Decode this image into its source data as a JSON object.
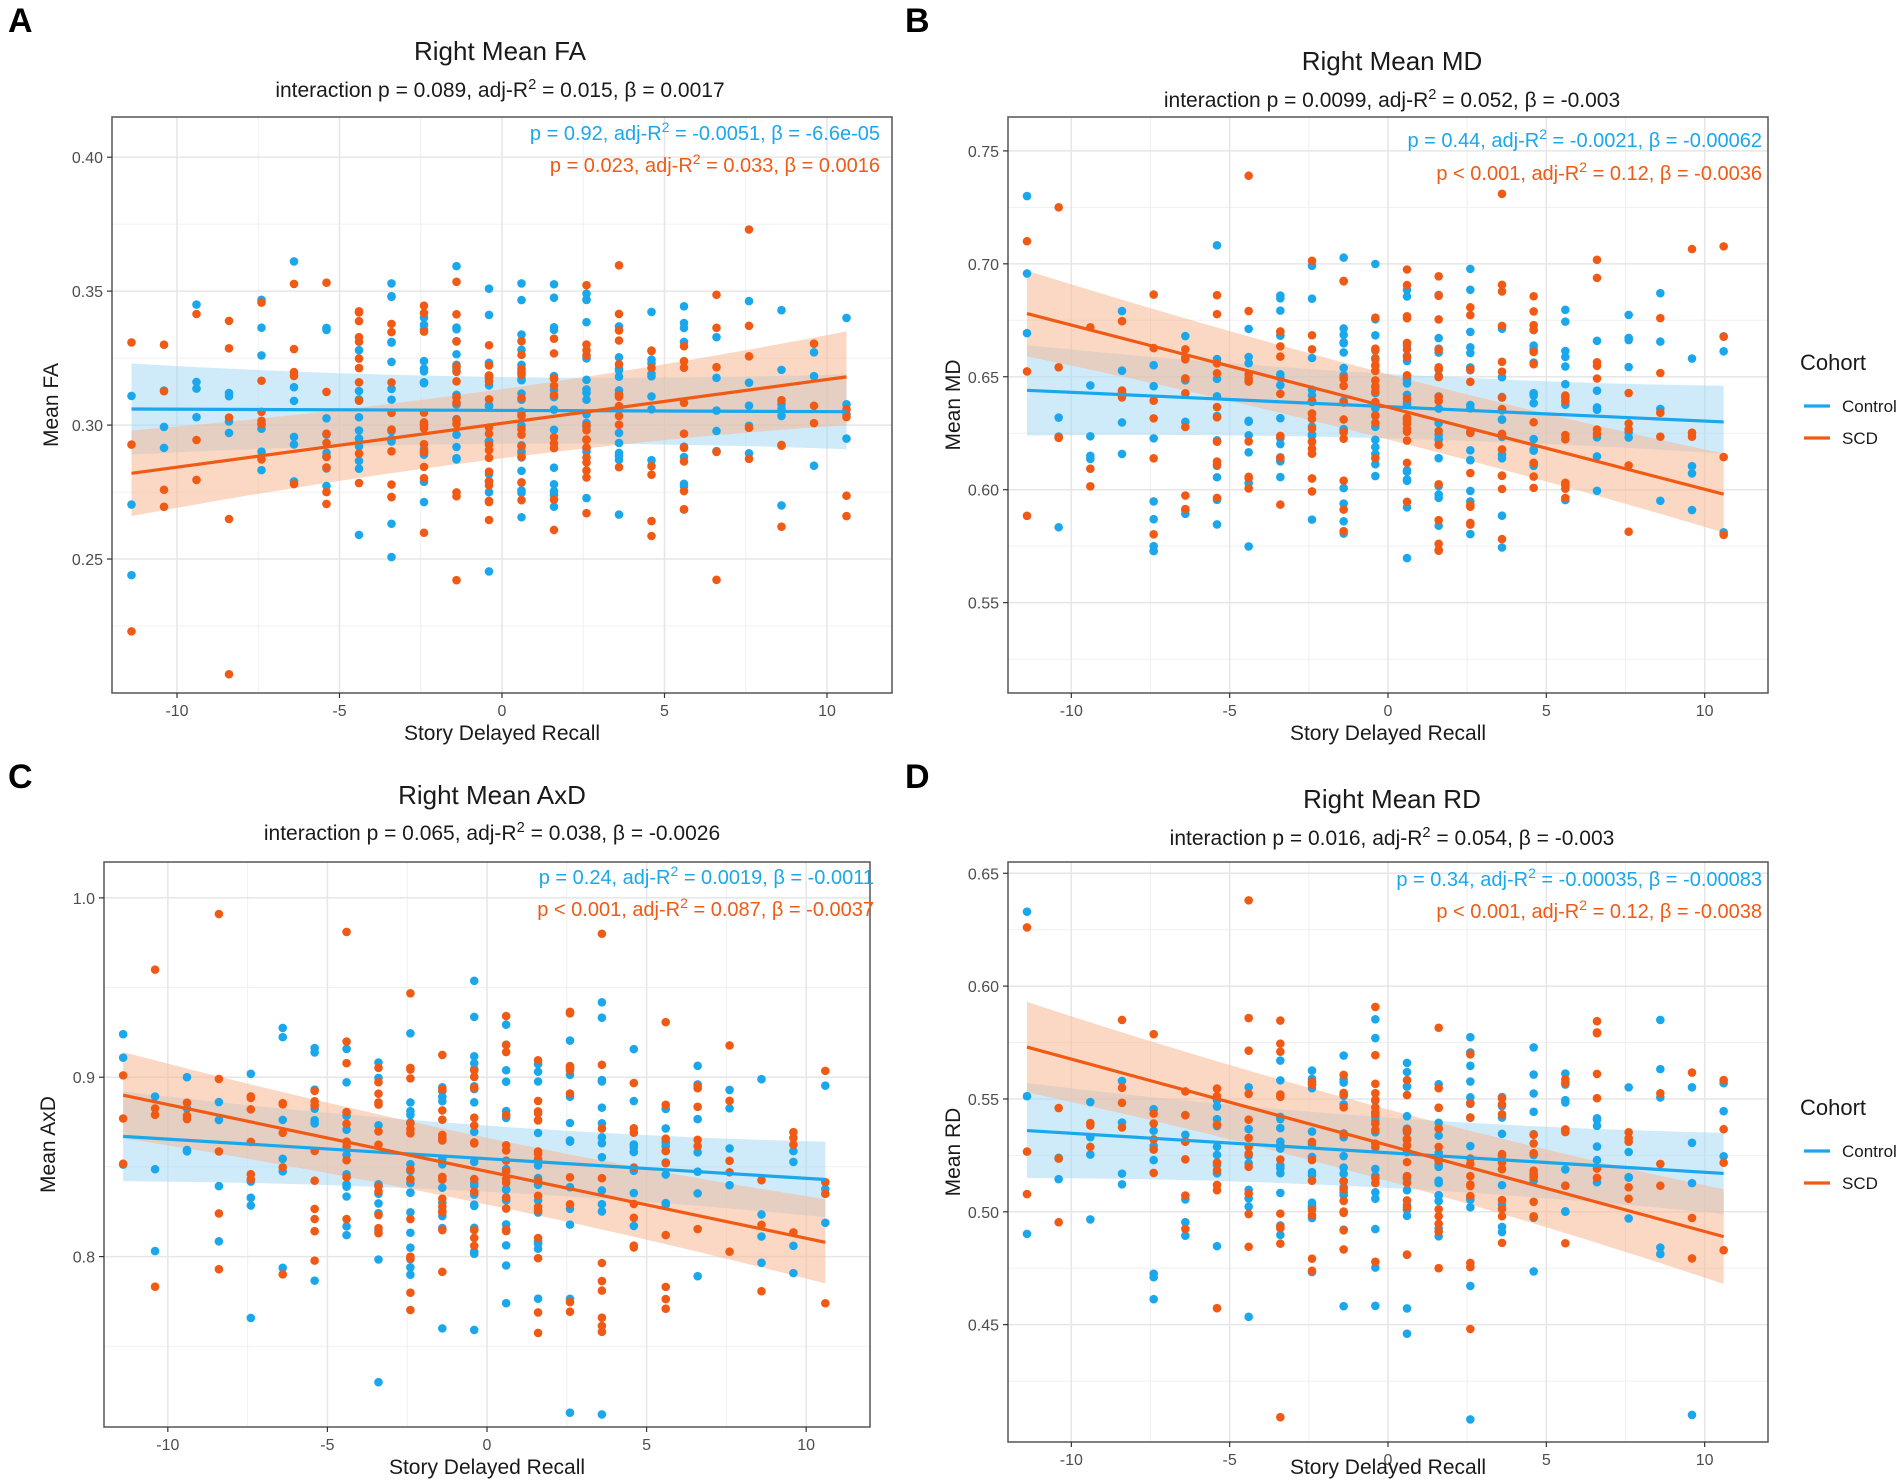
{
  "colors": {
    "control": "#1AA7EC",
    "scd": "#F05A14",
    "control_band": "#A8DAF5",
    "scd_band": "#F7B894",
    "grid": "#E6E6E6",
    "frame": "#555555"
  },
  "legend": {
    "title": "Cohort",
    "items": [
      "Control",
      "SCD"
    ]
  },
  "chart_data": [
    {
      "letter": "A",
      "type": "scatter",
      "title": "Right Mean FA",
      "subtitle": {
        "pre": "interaction p = 0.089, adj-R",
        "sup": "2",
        "post": " = 0.015, β = 0.0017"
      },
      "stats": [
        {
          "group": "Control",
          "pre": "p = 0.92, adj-R",
          "sup": "2",
          "post": " = -0.0051, β = -6.6e-05"
        },
        {
          "group": "SCD",
          "pre": "p = 0.023, adj-R",
          "sup": "2",
          "post": " = 0.033, β = 0.0016"
        }
      ],
      "xlabel": "Story Delayed Recall",
      "ylabel": "Mean FA",
      "xlim": [
        -12,
        12
      ],
      "ylim": [
        0.2,
        0.415
      ],
      "xticks": [
        -10,
        -5,
        0,
        5,
        10
      ],
      "xtick_labels": [
        "-10",
        "-5",
        "0",
        "5",
        "10"
      ],
      "yticks": [
        0.25,
        0.3,
        0.35,
        0.4
      ],
      "ytick_labels": [
        "0.25",
        "0.30",
        "0.35",
        "0.40"
      ],
      "control_fit": {
        "x": [
          -11.4,
          10.6
        ],
        "y": [
          0.306,
          0.305
        ],
        "band_lo_ends": [
          0.289,
          0.291
        ],
        "band_hi_ends": [
          0.323,
          0.319
        ]
      },
      "scd_fit": {
        "x": [
          -11.4,
          10.6
        ],
        "y": [
          0.282,
          0.318
        ],
        "band_lo_ends": [
          0.266,
          0.3
        ],
        "band_hi_ends": [
          0.298,
          0.335
        ]
      },
      "y_center": 0.305,
      "y_spread": 0.045,
      "control_points": [
        [
          -11.4,
          0.244
        ],
        [
          -7.4,
          0.326
        ],
        [
          8.6,
          0.27
        ],
        [
          10.6,
          0.304
        ]
      ],
      "scd_points": [
        [
          -11.4,
          0.223
        ],
        [
          -10.4,
          0.33
        ],
        [
          -8.4,
          0.207
        ],
        [
          7.6,
          0.373
        ],
        [
          10.6,
          0.303
        ]
      ]
    },
    {
      "letter": "B",
      "type": "scatter",
      "title": "Right Mean MD",
      "subtitle": {
        "pre": "interaction p = 0.0099, adj-R",
        "sup": "2",
        "post": " = 0.052, β = -0.003"
      },
      "stats": [
        {
          "group": "Control",
          "pre": "p = 0.44, adj-R",
          "sup": "2",
          "post": " = -0.0021, β = -0.00062"
        },
        {
          "group": "SCD",
          "pre": "p < 0.001, adj-R",
          "sup": "2",
          "post": " = 0.12, β = -0.0036"
        }
      ],
      "xlabel": "Story Delayed Recall",
      "ylabel": "Mean MD",
      "xlim": [
        -12,
        12
      ],
      "ylim": [
        0.51,
        0.765
      ],
      "xticks": [
        -10,
        -5,
        0,
        5,
        10
      ],
      "xtick_labels": [
        "-10",
        "-5",
        "0",
        "5",
        "10"
      ],
      "yticks": [
        0.55,
        0.6,
        0.65,
        0.7,
        0.75
      ],
      "ytick_labels": [
        "0.55",
        "0.60",
        "0.65",
        "0.70",
        "0.75"
      ],
      "control_fit": {
        "x": [
          -11.4,
          10.6
        ],
        "y": [
          0.644,
          0.63
        ],
        "band_lo_ends": [
          0.624,
          0.616
        ],
        "band_hi_ends": [
          0.664,
          0.646
        ]
      },
      "scd_fit": {
        "x": [
          -11.4,
          10.6
        ],
        "y": [
          0.678,
          0.598
        ],
        "band_lo_ends": [
          0.659,
          0.581
        ],
        "band_hi_ends": [
          0.697,
          0.616
        ]
      },
      "y_center": 0.637,
      "y_spread": 0.055,
      "control_points": [
        [
          -11.4,
          0.73
        ],
        [
          -7.4,
          0.575
        ],
        [
          8.6,
          0.687
        ],
        [
          9.6,
          0.591
        ]
      ],
      "scd_points": [
        [
          -11.4,
          0.71
        ],
        [
          -10.4,
          0.725
        ],
        [
          -4.4,
          0.739
        ],
        [
          3.6,
          0.731
        ],
        [
          10.6,
          0.58
        ]
      ]
    },
    {
      "letter": "C",
      "type": "scatter",
      "title": "Right Mean AxD",
      "subtitle": {
        "pre": "interaction p = 0.065, adj-R",
        "sup": "2",
        "post": " = 0.038, β = -0.0026"
      },
      "stats": [
        {
          "group": "Control",
          "pre": "p = 0.24, adj-R",
          "sup": "2",
          "post": " = 0.0019, β = -0.0011"
        },
        {
          "group": "SCD",
          "pre": "p < 0.001, adj-R",
          "sup": "2",
          "post": " = 0.087, β = -0.0037"
        }
      ],
      "xlabel": "Story Delayed Recall",
      "ylabel": "Mean AxD",
      "xlim": [
        -12,
        12
      ],
      "ylim": [
        0.705,
        1.02
      ],
      "xticks": [
        -10,
        -5,
        0,
        5,
        10
      ],
      "xtick_labels": [
        "-10",
        "-5",
        "0",
        "5",
        "10"
      ],
      "yticks": [
        0.8,
        0.9,
        1.0
      ],
      "ytick_labels": [
        "0.8",
        "0.9",
        "1.0"
      ],
      "control_fit": {
        "x": [
          -11.4,
          10.6
        ],
        "y": [
          0.867,
          0.843
        ],
        "band_lo_ends": [
          0.842,
          0.822
        ],
        "band_hi_ends": [
          0.892,
          0.864
        ]
      },
      "scd_fit": {
        "x": [
          -11.4,
          10.6
        ],
        "y": [
          0.89,
          0.808
        ],
        "band_lo_ends": [
          0.866,
          0.785
        ],
        "band_hi_ends": [
          0.914,
          0.832
        ]
      },
      "y_center": 0.853,
      "y_spread": 0.075,
      "control_points": [
        [
          -11.4,
          0.924
        ],
        [
          -3.4,
          0.73
        ],
        [
          2.6,
          0.713
        ],
        [
          3.6,
          0.712
        ],
        [
          9.6,
          0.806
        ]
      ],
      "scd_points": [
        [
          -11.4,
          0.877
        ],
        [
          -10.4,
          0.96
        ],
        [
          -8.4,
          0.991
        ],
        [
          -4.4,
          0.981
        ],
        [
          3.6,
          0.98
        ],
        [
          10.6,
          0.774
        ]
      ]
    },
    {
      "letter": "D",
      "type": "scatter",
      "title": "Right Mean RD",
      "subtitle": {
        "pre": "interaction p = 0.016, adj-R",
        "sup": "2",
        "post": " = 0.054, β = -0.003"
      },
      "stats": [
        {
          "group": "Control",
          "pre": "p = 0.34, adj-R",
          "sup": "2",
          "post": " = -0.00035, β = -0.00083"
        },
        {
          "group": "SCD",
          "pre": "p < 0.001, adj-R",
          "sup": "2",
          "post": " = 0.12, β = -0.0038"
        }
      ],
      "xlabel": "Story Delayed Recall",
      "ylabel": "Mean RD",
      "xlim": [
        -12,
        12
      ],
      "ylim": [
        0.398,
        0.655
      ],
      "xticks": [
        -10,
        -5,
        0,
        5,
        10
      ],
      "xtick_labels": [
        "-10",
        "-5",
        "0",
        "5",
        "10"
      ],
      "yticks": [
        0.45,
        0.5,
        0.55,
        0.6,
        0.65
      ],
      "ytick_labels": [
        "0.45",
        "0.50",
        "0.55",
        "0.60",
        "0.65"
      ],
      "control_fit": {
        "x": [
          -11.4,
          10.6
        ],
        "y": [
          0.536,
          0.517
        ],
        "band_lo_ends": [
          0.515,
          0.499
        ],
        "band_hi_ends": [
          0.557,
          0.535
        ]
      },
      "scd_fit": {
        "x": [
          -11.4,
          10.6
        ],
        "y": [
          0.573,
          0.489
        ],
        "band_lo_ends": [
          0.553,
          0.468
        ],
        "band_hi_ends": [
          0.593,
          0.51
        ]
      },
      "y_center": 0.525,
      "y_spread": 0.055,
      "control_points": [
        [
          -11.4,
          0.633
        ],
        [
          -7.4,
          0.471
        ],
        [
          2.6,
          0.408
        ],
        [
          8.6,
          0.585
        ],
        [
          9.6,
          0.41
        ]
      ],
      "scd_points": [
        [
          -11.4,
          0.626
        ],
        [
          -4.4,
          0.638
        ],
        [
          -3.4,
          0.409
        ],
        [
          10.6,
          0.483
        ]
      ]
    }
  ]
}
